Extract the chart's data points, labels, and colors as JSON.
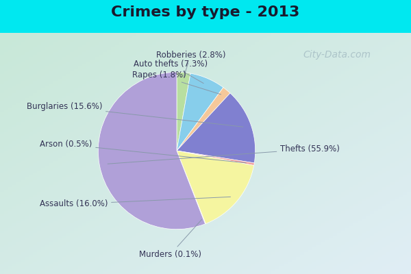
{
  "title": "Crimes by type - 2013",
  "title_fontsize": 16,
  "title_fontweight": "bold",
  "wedge_labels": [
    "Robberies (2.8%)",
    "Auto thefts (7.3%)",
    "Rapes (1.8%)",
    "Burglaries (15.6%)",
    "Arson (0.5%)",
    "Assaults (16.0%)",
    "Murders (0.1%)",
    "Thefts (55.9%)"
  ],
  "wedge_values": [
    2.8,
    7.3,
    1.8,
    15.6,
    0.5,
    16.0,
    0.1,
    55.9
  ],
  "wedge_colors": [
    "#b8dfa0",
    "#87ceeb",
    "#f5c89a",
    "#8080d0",
    "#f0a0a0",
    "#f5f5a0",
    "#f5f5a0",
    "#b0a0d8"
  ],
  "bg_cyan": "#00e8f0",
  "bg_chart_top_left": "#c8e8d8",
  "bg_chart_bottom_right": "#e0eef5",
  "label_color": "#333355",
  "label_fontsize": 8.5,
  "watermark": "City-Data.com",
  "watermark_color": "#a0b8c0",
  "watermark_fontsize": 10,
  "figsize": [
    6.0,
    4.0
  ],
  "dpi": 100
}
